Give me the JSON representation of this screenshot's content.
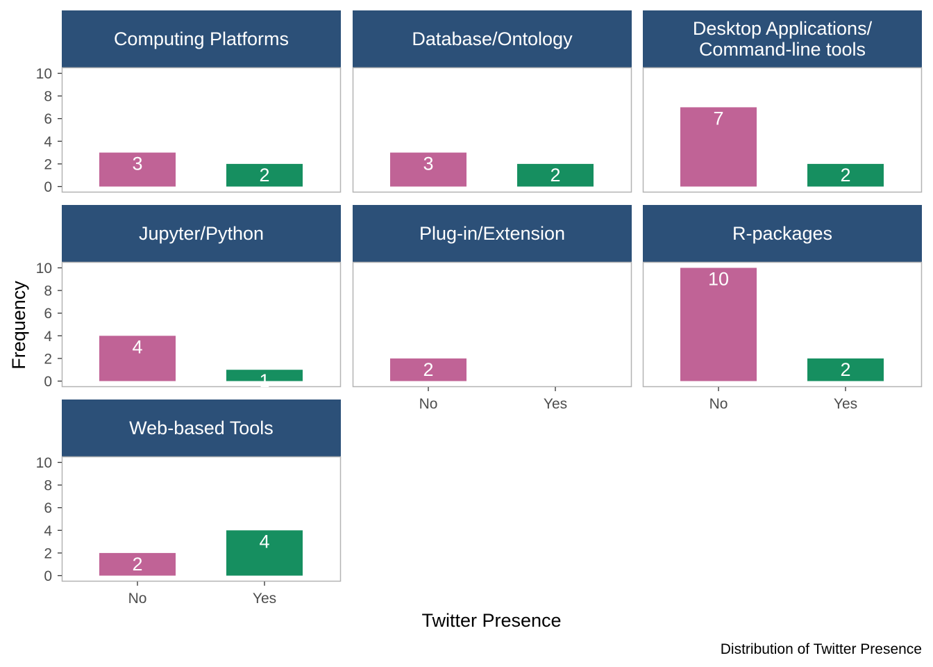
{
  "chart_data": {
    "type": "bar",
    "facet_variable": "Category",
    "categories": [
      "No",
      "Yes"
    ],
    "xlabel": "Twitter Presence",
    "ylabel": "Frequency",
    "caption": "Distribution of Twitter Presence",
    "ylim": [
      0,
      10
    ],
    "yticks": [
      0,
      2,
      4,
      6,
      8,
      10
    ],
    "grid": false,
    "legend": "none",
    "facets": [
      {
        "title": [
          "Computing Platforms"
        ],
        "values": [
          3,
          2
        ]
      },
      {
        "title": [
          "Database/Ontology"
        ],
        "values": [
          3,
          2
        ]
      },
      {
        "title": [
          "Desktop Applications/",
          "Command-line tools"
        ],
        "values": [
          7,
          2
        ]
      },
      {
        "title": [
          "Jupyter/Python"
        ],
        "values": [
          4,
          1
        ]
      },
      {
        "title": [
          "Plug-in/Extension"
        ],
        "values": [
          2,
          null
        ]
      },
      {
        "title": [
          "R-packages"
        ],
        "values": [
          10,
          2
        ]
      },
      {
        "title": [
          "Web-based Tools"
        ],
        "values": [
          2,
          4
        ]
      }
    ],
    "colors": {
      "No": "#c06396",
      "Yes": "#168f60",
      "strip": "#2c5078",
      "panel_border": "#b3b3b3"
    }
  }
}
